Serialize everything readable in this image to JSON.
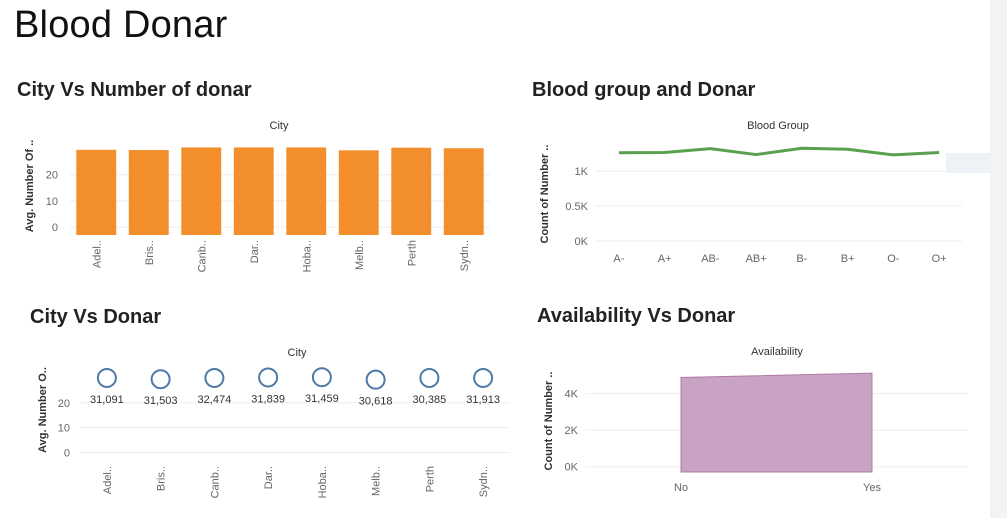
{
  "page": {
    "title": "Blood Donar"
  },
  "chart_data": [
    {
      "id": "city_vs_number",
      "type": "bar",
      "section_title": "City Vs Number of donar",
      "title": "City",
      "ylabel": "Avg. Number Of ..",
      "categories": [
        "Adel..",
        "Bris..",
        "Canb..",
        "Dar..",
        "Hoba..",
        "Melb..",
        "Perth",
        "Sydn.."
      ],
      "values": [
        29.5,
        29.4,
        30.4,
        30.4,
        30.4,
        29.3,
        30.3,
        30.1
      ],
      "yticks": [
        {
          "v": 0,
          "label": "0"
        },
        {
          "v": 10,
          "label": "10"
        },
        {
          "v": 20,
          "label": "20"
        }
      ],
      "ylim": [
        -3,
        34
      ],
      "color": "#f28e2b"
    },
    {
      "id": "bloodgroup_vs_donar",
      "type": "line",
      "section_title": "Blood group and Donar",
      "title": "Blood Group",
      "ylabel": "Count of Number ..",
      "categories": [
        "A-",
        "A+",
        "AB-",
        "AB+",
        "B-",
        "B+",
        "O-",
        "O+"
      ],
      "values": [
        1260,
        1265,
        1320,
        1235,
        1325,
        1310,
        1230,
        1265
      ],
      "yticks": [
        {
          "v": 0,
          "label": "0K"
        },
        {
          "v": 500,
          "label": "0.5K"
        },
        {
          "v": 1000,
          "label": "1K"
        }
      ],
      "ylim": [
        -100,
        1500
      ],
      "color": "#59a14f"
    },
    {
      "id": "city_vs_donar",
      "type": "scatter",
      "section_title": "City Vs Donar",
      "title": "City",
      "ylabel": "Avg. Number O..",
      "categories": [
        "Adel..",
        "Bris..",
        "Canb..",
        "Dar..",
        "Hoba..",
        "Melb..",
        "Perth",
        "Sydn.."
      ],
      "values": [
        30,
        29.5,
        30,
        30.2,
        30.3,
        29.3,
        30,
        30
      ],
      "labels": [
        "31,091",
        "31,503",
        "32,474",
        "31,839",
        "31,459",
        "30,618",
        "30,385",
        "31,913"
      ],
      "yticks": [
        {
          "v": 0,
          "label": "0"
        },
        {
          "v": 10,
          "label": "10"
        },
        {
          "v": 20,
          "label": "20"
        }
      ],
      "ylim": [
        -3,
        34
      ],
      "color": "#4e79a7"
    },
    {
      "id": "availability_vs_donar",
      "type": "area",
      "section_title": "Availability Vs Donar",
      "title": "Availability",
      "ylabel": "Count of Number ..",
      "categories": [
        "No",
        "Yes"
      ],
      "values": [
        4880,
        5120
      ],
      "yticks": [
        {
          "v": 0,
          "label": "0K"
        },
        {
          "v": 2000,
          "label": "2K"
        },
        {
          "v": 4000,
          "label": "4K"
        }
      ],
      "ylim": [
        -400,
        5400
      ],
      "color": "#c9a3c4",
      "stroke": "#b07aa1"
    }
  ]
}
